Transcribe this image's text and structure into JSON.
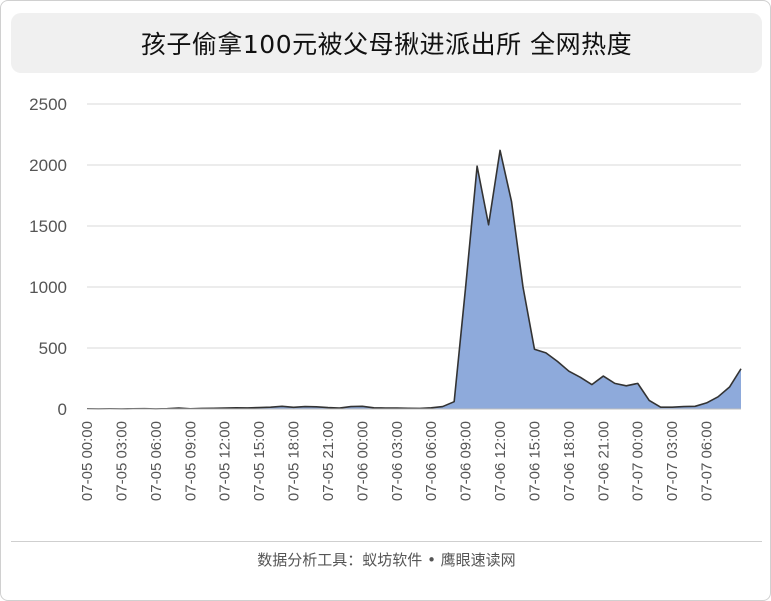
{
  "title": "孩子偷拿100元被父母揪进派出所 全网热度",
  "footer": "数据分析工具：蚁坊软件 • 鹰眼速读网",
  "colors": {
    "area_fill": "#8eaadb",
    "line": "#333333",
    "grid": "#d9d9d9",
    "title_bg": "#f0f0f0"
  },
  "chart_data": {
    "type": "area",
    "title": "孩子偷拿100元被父母揪进派出所 全网热度",
    "xlabel": "",
    "ylabel": "",
    "ylim": [
      0,
      2500
    ],
    "yticks": [
      "0",
      "500",
      "1000",
      "1500",
      "2000",
      "2500"
    ],
    "grid": true,
    "legend": "none",
    "x_tick_labels": [
      "07-05 00:00",
      "07-05 03:00",
      "07-05 06:00",
      "07-05 09:00",
      "07-05 12:00",
      "07-05 15:00",
      "07-05 18:00",
      "07-05 21:00",
      "07-06 00:00",
      "07-06 03:00",
      "07-06 06:00",
      "07-06 09:00",
      "07-06 12:00",
      "07-06 15:00",
      "07-06 18:00",
      "07-06 21:00",
      "07-07 00:00",
      "07-07 03:00",
      "07-07 06:00"
    ],
    "x_tick_every": 3,
    "values": [
      2,
      1,
      2,
      1,
      2,
      3,
      1,
      3,
      8,
      2,
      5,
      6,
      8,
      10,
      9,
      12,
      15,
      22,
      14,
      20,
      18,
      12,
      8,
      20,
      22,
      10,
      8,
      8,
      6,
      5,
      10,
      20,
      60,
      1000,
      1990,
      1510,
      2120,
      1700,
      1000,
      490,
      460,
      390,
      310,
      260,
      200,
      270,
      210,
      190,
      210,
      70,
      15,
      15,
      20,
      22,
      50,
      100,
      180,
      330
    ]
  }
}
